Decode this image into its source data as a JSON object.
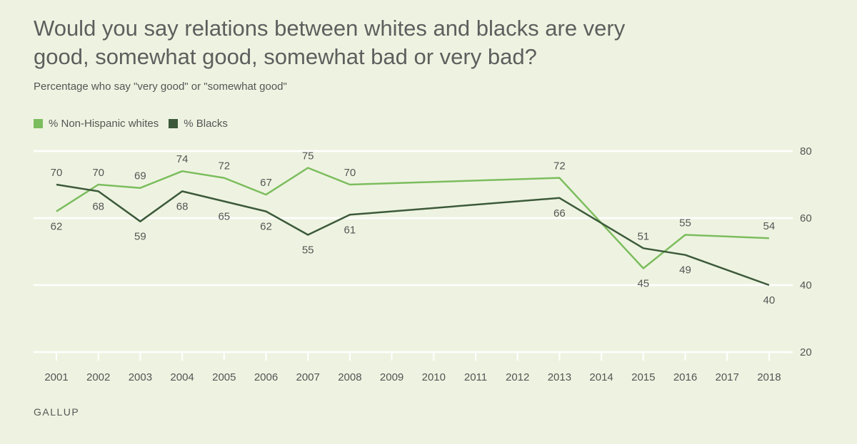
{
  "chart_data": {
    "type": "line",
    "title": "Would you say relations between whites and blacks are very good, somewhat good, somewhat bad or very bad?",
    "subtitle": "Percentage who say \"very good\" or \"somewhat good\"",
    "x_ticks": [
      "2001",
      "2002",
      "2003",
      "2004",
      "2005",
      "2006",
      "2007",
      "2008",
      "2009",
      "2010",
      "2011",
      "2012",
      "2013",
      "2014",
      "2015",
      "2016",
      "2017",
      "2018"
    ],
    "y_ticks": [
      80,
      60,
      40,
      20
    ],
    "ylim": [
      20,
      80
    ],
    "grid": true,
    "legend_position": "top-left",
    "series": [
      {
        "name": "% Non-Hispanic whites",
        "color": "#7cbd5e",
        "x": [
          2001,
          2002,
          2003,
          2004,
          2005,
          2006,
          2007,
          2008,
          2013,
          2015,
          2016,
          2018
        ],
        "values": [
          62,
          70,
          69,
          74,
          72,
          67,
          75,
          70,
          72,
          45,
          55,
          54
        ]
      },
      {
        "name": "% Blacks",
        "color": "#3c5a3a",
        "x": [
          2001,
          2002,
          2003,
          2004,
          2005,
          2006,
          2007,
          2008,
          2013,
          2015,
          2016,
          2018
        ],
        "values": [
          70,
          68,
          59,
          68,
          65,
          62,
          55,
          61,
          66,
          51,
          49,
          40
        ]
      }
    ]
  },
  "source": "GALLUP"
}
